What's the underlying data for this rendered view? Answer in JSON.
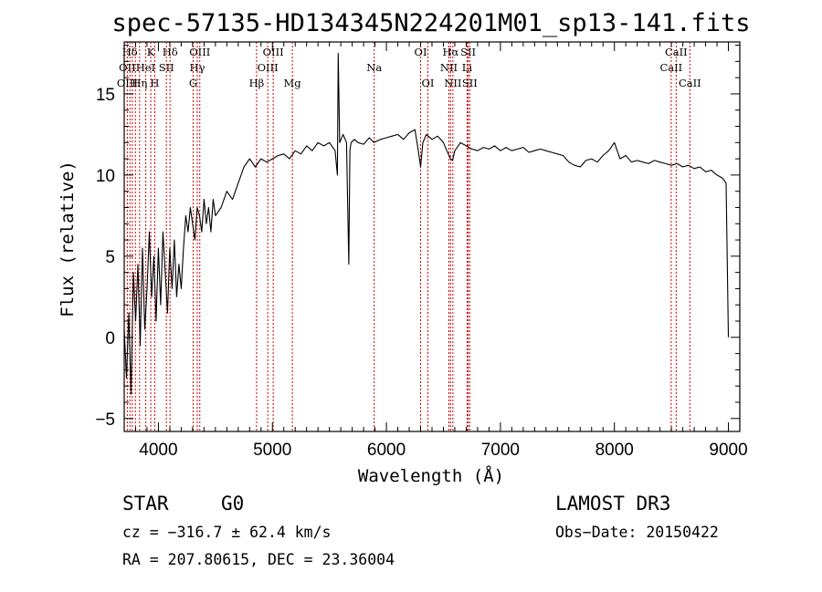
{
  "chart_data": {
    "type": "line",
    "title": "spec-57135-HD134345N224201M01_sp13-141.fits",
    "xlabel": "Wavelength (Å)",
    "ylabel": "Flux (relative)",
    "xlim": [
      3700,
      9100
    ],
    "ylim": [
      -5.8,
      18.2
    ],
    "x_ticks": [
      4000,
      5000,
      6000,
      7000,
      8000,
      9000
    ],
    "y_ticks": [
      -5,
      0,
      5,
      10,
      15
    ],
    "grid": false,
    "line_color": "#000000",
    "marker_color": "#cc0000",
    "series": [
      {
        "x": [
          3700,
          3720,
          3740,
          3760,
          3780,
          3800,
          3820,
          3840,
          3860,
          3880,
          3900,
          3920,
          3940,
          3960,
          3980,
          4000,
          4020,
          4040,
          4060,
          4080,
          4100,
          4120,
          4140,
          4160,
          4180,
          4200,
          4220,
          4240,
          4260,
          4280,
          4300,
          4320,
          4340,
          4360,
          4380,
          4400,
          4420,
          4440,
          4460,
          4480,
          4500,
          4550,
          4600,
          4650,
          4700,
          4750,
          4800,
          4850,
          4900,
          4950,
          5000,
          5050,
          5100,
          5150,
          5200,
          5250,
          5300,
          5350,
          5400,
          5450,
          5500,
          5550,
          5570,
          5577,
          5590,
          5620,
          5650,
          5670,
          5680,
          5690,
          5720,
          5750,
          5800,
          5850,
          5890,
          5950,
          6000,
          6050,
          6100,
          6150,
          6200,
          6250,
          6280,
          6300,
          6320,
          6350,
          6400,
          6450,
          6500,
          6530,
          6563,
          6580,
          6600,
          6650,
          6700,
          6750,
          6800,
          6850,
          6900,
          6950,
          7000,
          7050,
          7100,
          7150,
          7200,
          7250,
          7300,
          7350,
          7400,
          7450,
          7500,
          7550,
          7600,
          7650,
          7700,
          7750,
          7800,
          7850,
          7900,
          7950,
          8000,
          8050,
          8100,
          8150,
          8200,
          8250,
          8300,
          8350,
          8400,
          8450,
          8500,
          8550,
          8600,
          8650,
          8700,
          8750,
          8800,
          8850,
          8900,
          8950,
          8980,
          9000
        ],
        "y": [
          0.5,
          -2.5,
          1.5,
          -3.5,
          4.0,
          1.0,
          4.5,
          -0.5,
          5.5,
          0.5,
          3.0,
          6.5,
          2.5,
          5.0,
          1.0,
          5.5,
          2.0,
          6.5,
          4.0,
          1.5,
          5.5,
          3.0,
          6.0,
          2.5,
          4.5,
          3.0,
          5.5,
          7.5,
          6.5,
          8.0,
          7.0,
          6.0,
          8.0,
          7.5,
          6.5,
          8.5,
          7.0,
          8.0,
          6.5,
          8.5,
          7.5,
          8.0,
          9.0,
          8.5,
          9.5,
          10.5,
          11.0,
          10.5,
          11.0,
          10.8,
          11.0,
          11.2,
          11.3,
          11.0,
          11.5,
          11.3,
          11.8,
          11.5,
          12.0,
          11.8,
          12.0,
          11.5,
          10.0,
          17.5,
          12.0,
          12.5,
          12.0,
          4.5,
          11.5,
          12.0,
          12.2,
          12.0,
          11.9,
          12.3,
          12.0,
          12.2,
          12.3,
          12.4,
          12.5,
          12.2,
          12.6,
          12.8,
          11.5,
          10.5,
          12.0,
          12.5,
          12.2,
          12.4,
          12.0,
          11.5,
          11.0,
          10.9,
          11.5,
          12.0,
          11.8,
          11.6,
          11.5,
          11.7,
          11.6,
          11.8,
          11.5,
          11.7,
          11.5,
          11.6,
          11.7,
          11.4,
          11.5,
          11.6,
          11.5,
          11.4,
          11.3,
          11.2,
          10.8,
          10.6,
          10.5,
          10.9,
          11.0,
          10.8,
          11.2,
          11.5,
          12.0,
          11.0,
          11.2,
          10.8,
          10.9,
          10.8,
          10.7,
          10.9,
          10.8,
          10.7,
          10.6,
          10.7,
          10.5,
          10.6,
          10.4,
          10.5,
          10.2,
          10.3,
          10.0,
          9.8,
          9.5,
          0.0
        ]
      }
    ],
    "annotations": [
      {
        "label": "Hδ",
        "x": 3750,
        "row": 0
      },
      {
        "label": "K",
        "x": 3933,
        "row": 0
      },
      {
        "label": "Hδ",
        "x": 4102,
        "row": 0
      },
      {
        "label": "OIII",
        "x": 4363,
        "row": 0
      },
      {
        "label": "OIII",
        "x": 5007,
        "row": 0
      },
      {
        "label": "OI",
        "x": 6300,
        "row": 0
      },
      {
        "label": "Hα",
        "x": 6563,
        "row": 0
      },
      {
        "label": "SII",
        "x": 6717,
        "row": 0
      },
      {
        "label": "CaII",
        "x": 8542,
        "row": 0
      },
      {
        "label": "OII",
        "x": 3727,
        "row": 1
      },
      {
        "label": "HeI",
        "x": 3888,
        "row": 1
      },
      {
        "label": "SII",
        "x": 4070,
        "row": 1
      },
      {
        "label": "Hγ",
        "x": 4341,
        "row": 1
      },
      {
        "label": "OIII",
        "x": 4959,
        "row": 1
      },
      {
        "label": "Na",
        "x": 5893,
        "row": 1
      },
      {
        "label": "NII",
        "x": 6548,
        "row": 1
      },
      {
        "label": "Li",
        "x": 6708,
        "row": 1
      },
      {
        "label": "CaII",
        "x": 8498,
        "row": 1
      },
      {
        "label": "OIII",
        "x": 3727,
        "row": 2
      },
      {
        "label": "Hη",
        "x": 3835,
        "row": 2
      },
      {
        "label": "H",
        "x": 3968,
        "row": 2
      },
      {
        "label": "G",
        "x": 4305,
        "row": 2
      },
      {
        "label": "Hβ",
        "x": 4861,
        "row": 2
      },
      {
        "label": "Mg",
        "x": 5175,
        "row": 2
      },
      {
        "label": "OI",
        "x": 6364,
        "row": 2
      },
      {
        "label": "NII",
        "x": 6583,
        "row": 2
      },
      {
        "label": "SII",
        "x": 6731,
        "row": 2
      },
      {
        "label": "CaII",
        "x": 8662,
        "row": 2
      }
    ],
    "marker_lines_x": [
      3727,
      3750,
      3771,
      3798,
      3835,
      3889,
      3933,
      3968,
      4070,
      4102,
      4305,
      4341,
      4363,
      4861,
      4959,
      5007,
      5175,
      5893,
      6300,
      6364,
      6548,
      6563,
      6583,
      6708,
      6717,
      6731,
      8498,
      8542,
      8662
    ]
  },
  "info": {
    "class": "STAR",
    "subclass": "G0",
    "survey": "LAMOST DR3",
    "velocity": "cz = −316.7 ± 62.4 km/s",
    "obs_date": "Obs−Date: 20150422",
    "coords": "RA = 207.80615, DEC =  23.36004"
  }
}
